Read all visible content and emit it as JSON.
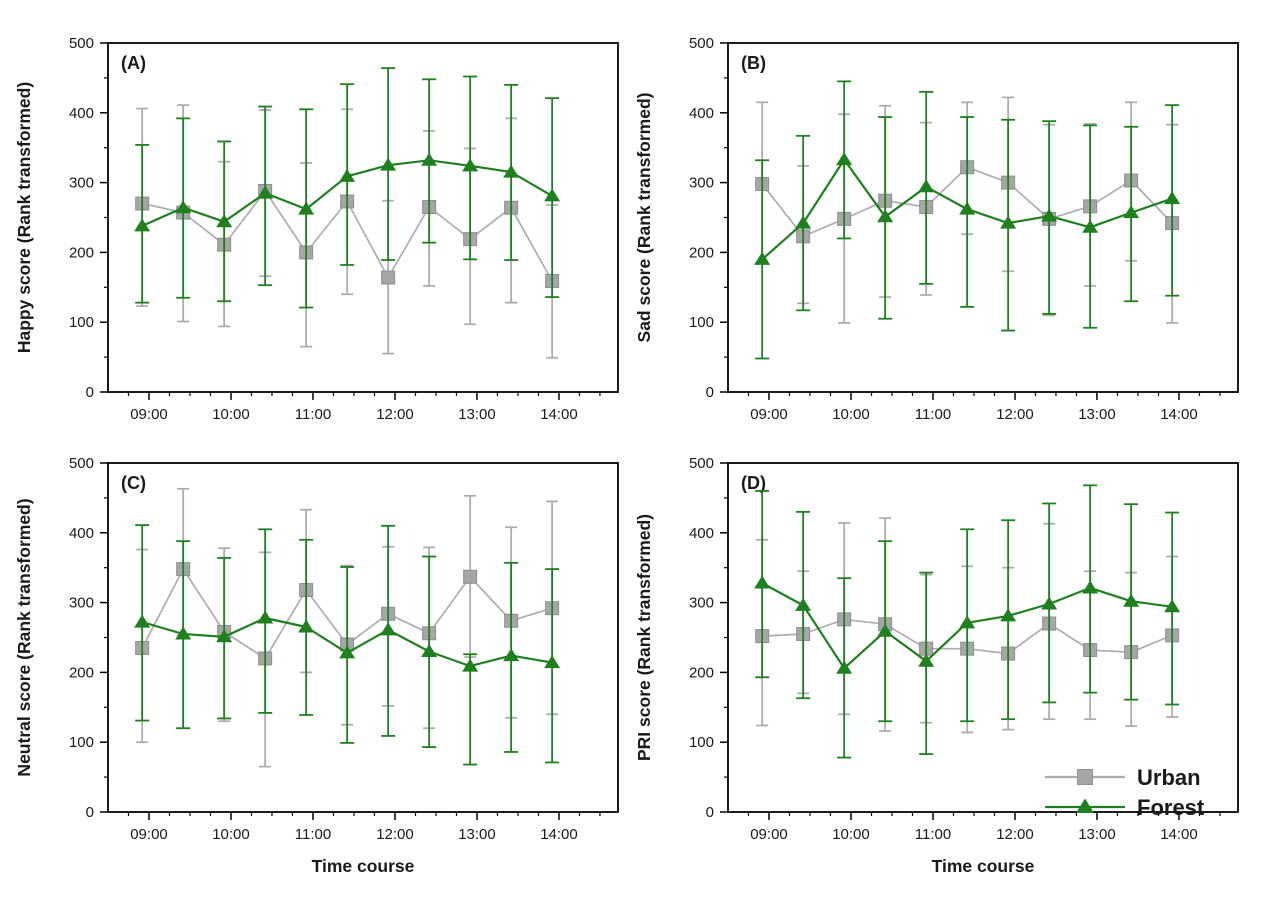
{
  "figure": {
    "background": "#ffffff",
    "description": "Four-panel line chart with error bars comparing Urban and Forest scores over time"
  },
  "colors": {
    "urban_marker": "#a6a6a6",
    "urban_line": "#adadad",
    "urban_marker_edge": "#8f8f8f",
    "forest": "#1e801e",
    "axis": "#000000",
    "text": "#1a1a1a"
  },
  "legend": {
    "panel": "D",
    "items": [
      {
        "label": "Urban",
        "series": "urban",
        "marker": "square"
      },
      {
        "label": "Forest",
        "series": "forest",
        "marker": "triangle"
      }
    ]
  },
  "chart_data": [
    {
      "type": "line",
      "panel_label": "(A)",
      "ylabel": "Happy score (Rank transformed)",
      "xlabel": "",
      "ylim": [
        0,
        500
      ],
      "yticks": [
        0,
        100,
        200,
        300,
        400,
        500
      ],
      "x_tick_labels": [
        "09:00",
        "10:00",
        "11:00",
        "12:00",
        "13:00",
        "14:00"
      ],
      "x_points": [
        "08:55",
        "09:25",
        "09:55",
        "10:25",
        "10:55",
        "11:25",
        "11:55",
        "12:25",
        "12:55",
        "13:25",
        "13:55"
      ],
      "grid": false,
      "show_legend": false,
      "series": [
        {
          "name": "Urban",
          "marker": "square",
          "values": [
            270,
            257,
            211,
            288,
            200,
            273,
            164,
            265,
            219,
            264,
            159
          ],
          "err_hi": [
            406,
            411,
            330,
            404,
            328,
            405,
            274,
            374,
            349,
            392,
            268
          ],
          "err_lo": [
            123,
            101,
            94,
            166,
            65,
            140,
            55,
            152,
            97,
            128,
            49
          ]
        },
        {
          "name": "Forest",
          "marker": "triangle",
          "values": [
            238,
            264,
            244,
            285,
            262,
            309,
            325,
            332,
            324,
            315,
            281
          ],
          "err_hi": [
            354,
            392,
            359,
            409,
            405,
            441,
            464,
            448,
            452,
            440,
            421
          ],
          "err_lo": [
            128,
            135,
            130,
            153,
            121,
            182,
            189,
            214,
            190,
            189,
            136
          ]
        }
      ]
    },
    {
      "type": "line",
      "panel_label": "(B)",
      "ylabel": "Sad score (Rank transformed)",
      "xlabel": "",
      "ylim": [
        0,
        500
      ],
      "yticks": [
        0,
        100,
        200,
        300,
        400,
        500
      ],
      "x_tick_labels": [
        "09:00",
        "10:00",
        "11:00",
        "12:00",
        "13:00",
        "14:00"
      ],
      "x_points": [
        "08:55",
        "09:25",
        "09:55",
        "10:25",
        "10:55",
        "11:25",
        "11:55",
        "12:25",
        "12:55",
        "13:25",
        "13:55"
      ],
      "grid": false,
      "show_legend": false,
      "series": [
        {
          "name": "Urban",
          "marker": "square",
          "values": [
            298,
            223,
            248,
            274,
            265,
            322,
            300,
            248,
            266,
            303,
            242
          ],
          "err_hi": [
            415,
            324,
            398,
            410,
            386,
            415,
            422,
            383,
            384,
            415,
            383
          ],
          "err_lo": [
            185,
            127,
            99,
            136,
            139,
            226,
            173,
            110,
            152,
            188,
            99
          ]
        },
        {
          "name": "Forest",
          "marker": "triangle",
          "values": [
            190,
            242,
            333,
            251,
            294,
            262,
            242,
            252,
            236,
            257,
            277
          ],
          "err_hi": [
            332,
            367,
            445,
            394,
            430,
            394,
            390,
            388,
            382,
            380,
            411
          ],
          "err_lo": [
            48,
            117,
            220,
            105,
            155,
            122,
            88,
            112,
            92,
            130,
            138
          ]
        }
      ]
    },
    {
      "type": "line",
      "panel_label": "(C)",
      "ylabel": "Neutral score (Rank transformed)",
      "xlabel": "Time course",
      "ylim": [
        0,
        500
      ],
      "yticks": [
        0,
        100,
        200,
        300,
        400,
        500
      ],
      "x_tick_labels": [
        "09:00",
        "10:00",
        "11:00",
        "12:00",
        "13:00",
        "14:00"
      ],
      "x_points": [
        "08:55",
        "09:25",
        "09:55",
        "10:25",
        "10:55",
        "11:25",
        "11:55",
        "12:25",
        "12:55",
        "13:25",
        "13:55"
      ],
      "grid": false,
      "show_legend": false,
      "series": [
        {
          "name": "Urban",
          "marker": "square",
          "values": [
            235,
            348,
            258,
            220,
            318,
            240,
            284,
            256,
            337,
            274,
            292
          ],
          "err_hi": [
            376,
            463,
            378,
            372,
            433,
            353,
            380,
            379,
            453,
            408,
            445
          ],
          "err_lo": [
            100,
            120,
            130,
            65,
            200,
            125,
            152,
            120,
            222,
            135,
            140
          ]
        },
        {
          "name": "Forest",
          "marker": "triangle",
          "values": [
            272,
            255,
            251,
            278,
            265,
            228,
            261,
            230,
            209,
            224,
            214
          ],
          "err_hi": [
            411,
            388,
            364,
            405,
            390,
            351,
            410,
            366,
            226,
            357,
            348
          ],
          "err_lo": [
            131,
            120,
            134,
            142,
            139,
            99,
            109,
            93,
            68,
            86,
            71
          ]
        }
      ]
    },
    {
      "type": "line",
      "panel_label": "(D)",
      "ylabel": "PRI score (Rank transformed)",
      "xlabel": "Time course",
      "ylim": [
        0,
        500
      ],
      "yticks": [
        0,
        100,
        200,
        300,
        400,
        500
      ],
      "x_tick_labels": [
        "09:00",
        "10:00",
        "11:00",
        "12:00",
        "13:00",
        "14:00"
      ],
      "x_points": [
        "08:55",
        "09:25",
        "09:55",
        "10:25",
        "10:55",
        "11:25",
        "11:55",
        "12:25",
        "12:55",
        "13:25",
        "13:55"
      ],
      "grid": false,
      "show_legend": true,
      "series": [
        {
          "name": "Urban",
          "marker": "square",
          "values": [
            252,
            255,
            276,
            269,
            234,
            234,
            227,
            270,
            232,
            229,
            253
          ],
          "err_hi": [
            390,
            345,
            414,
            421,
            340,
            352,
            350,
            413,
            345,
            343,
            366
          ],
          "err_lo": [
            124,
            170,
            140,
            116,
            128,
            114,
            118,
            133,
            133,
            123,
            136
          ]
        },
        {
          "name": "Forest",
          "marker": "triangle",
          "values": [
            328,
            296,
            206,
            259,
            216,
            271,
            281,
            298,
            321,
            302,
            294
          ],
          "err_hi": [
            460,
            430,
            335,
            388,
            343,
            405,
            418,
            442,
            468,
            441,
            429
          ],
          "err_lo": [
            193,
            163,
            78,
            130,
            83,
            130,
            133,
            157,
            171,
            161,
            154
          ]
        }
      ]
    }
  ]
}
